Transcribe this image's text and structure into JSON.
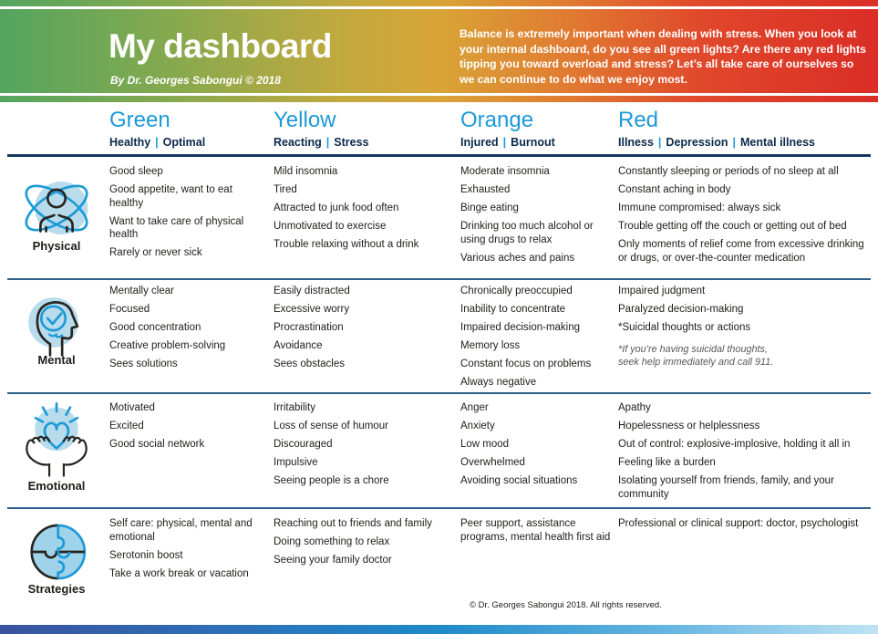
{
  "header": {
    "title": "My dashboard",
    "byline": "By Dr. Georges Sabongui © 2018",
    "intro": "Balance is extremely important when dealing with stress. When you look at your internal dashboard, do you see all green lights? Are there any red lights tipping you toward overload and stress? Let’s all take care of ourselves so we can continue to do what we enjoy most."
  },
  "colors": {
    "accent_blue": "#1b9ad7",
    "navy": "#0b2a4a",
    "header_gradient": [
      "#54a55f",
      "#d9a437",
      "#da2d26"
    ],
    "bottom_bar_gradient": [
      "#3a53a0",
      "#1f8ac9",
      "#bfe3f5"
    ]
  },
  "columns": [
    {
      "id": "green",
      "label": "Green",
      "sub": [
        "Healthy",
        "Optimal"
      ]
    },
    {
      "id": "yellow",
      "label": "Yellow",
      "sub": [
        "Reacting",
        "Stress"
      ]
    },
    {
      "id": "orange",
      "label": "Orange",
      "sub": [
        "Injured",
        "Burnout"
      ]
    },
    {
      "id": "red",
      "label": "Red",
      "sub": [
        "Illness",
        "Depression",
        "Mental illness"
      ]
    }
  ],
  "rows": [
    {
      "id": "physical",
      "label": "Physical",
      "icon": "physical-icon",
      "cells": {
        "green": {
          "items": [
            "Good sleep",
            "Good appetite, want to eat healthy",
            "Want to take care of physical health",
            "Rarely or never sick"
          ]
        },
        "yellow": {
          "items": [
            "Mild insomnia",
            "Tired",
            "Attracted to junk food often",
            "Unmotivated to exercise",
            "Trouble relaxing without a drink"
          ]
        },
        "orange": {
          "items": [
            "Moderate insomnia",
            "Exhausted",
            "Binge eating",
            "Drinking too much alcohol or using drugs to relax",
            "Various aches and pains"
          ]
        },
        "red": {
          "items": [
            "Constantly sleeping or periods of no sleep at all",
            "Constant aching in body",
            "Immune compromised: always sick",
            "Trouble getting off the couch or getting out of bed",
            "Only moments of relief come from excessive drinking or drugs, or over-the-counter medication"
          ]
        }
      }
    },
    {
      "id": "mental",
      "label": "Mental",
      "icon": "mental-icon",
      "cells": {
        "green": {
          "items": [
            "Mentally clear",
            "Focused",
            "Good concentration",
            "Creative problem-solving",
            "Sees solutions"
          ]
        },
        "yellow": {
          "items": [
            "Easily distracted",
            "Excessive worry",
            "Procrastination",
            "Avoidance",
            "Sees obstacles"
          ]
        },
        "orange": {
          "items": [
            "Chronically preoccupied",
            "Inability to concentrate",
            "Impaired decision-making",
            "Memory loss",
            "Constant focus on problems",
            "Always negative"
          ]
        },
        "red": {
          "items": [
            "Impaired judgment",
            "Paralyzed decision-making",
            "*Suicidal thoughts or actions"
          ],
          "note": "*If you’re having suicidal thoughts,\nseek help immediately and call 911."
        }
      }
    },
    {
      "id": "emotional",
      "label": "Emotional",
      "icon": "emotional-icon",
      "cells": {
        "green": {
          "items": [
            "Motivated",
            "Excited",
            "Good social network"
          ]
        },
        "yellow": {
          "items": [
            "Irritability",
            "Loss of sense of humour",
            "Discouraged",
            "Impulsive",
            "Seeing people is a chore"
          ]
        },
        "orange": {
          "items": [
            "Anger",
            "Anxiety",
            "Low mood",
            "Overwhelmed",
            "Avoiding social situations"
          ]
        },
        "red": {
          "items": [
            "Apathy",
            "Hopelessness or helplessness",
            "Out of control: explosive-implosive, holding it all in",
            "Feeling like a burden",
            "Isolating yourself from friends, family, and your community"
          ]
        }
      }
    },
    {
      "id": "strategies",
      "label": "Strategies",
      "icon": "strategies-icon",
      "cells": {
        "green": {
          "items": [
            "Self care: physical, mental and emotional",
            "Serotonin boost",
            "Take a work break or vacation"
          ]
        },
        "yellow": {
          "items": [
            "Reaching out to friends and family",
            "Doing something to relax",
            "Seeing your family doctor"
          ]
        },
        "orange": {
          "items": [
            "Peer support, assistance programs, mental health first aid"
          ]
        },
        "red": {
          "items": [
            "Professional or clinical support: doctor, psychologist"
          ]
        }
      }
    }
  ],
  "footer": {
    "text": "© Dr. Georges Sabongui 2018. All rights reserved."
  }
}
